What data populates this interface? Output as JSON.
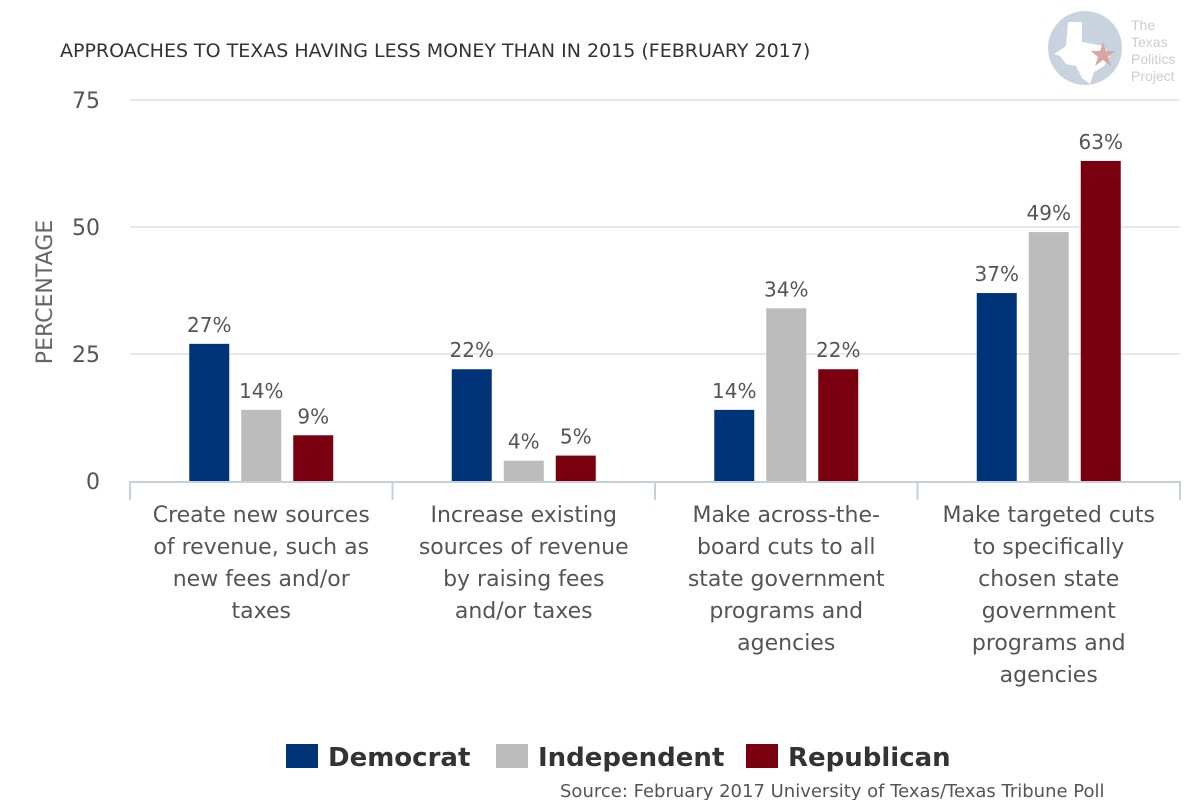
{
  "logo": {
    "icon": "texas-star-logo-icon",
    "lines": [
      "The",
      "Texas",
      "Politics",
      "Project"
    ],
    "colors": {
      "circle": "#c9d3df",
      "star": "#d9a6a6"
    }
  },
  "chart_data": {
    "type": "bar",
    "title": "APPROACHES TO TEXAS HAVING LESS MONEY THAN IN 2015 (FEBRUARY 2017)",
    "xlabel": "",
    "ylabel": "PERCENTAGE",
    "ylim": [
      0,
      75
    ],
    "yticks": [
      0,
      25,
      50,
      75
    ],
    "grid": true,
    "legend_position": "bottom",
    "categories": [
      [
        "Create new sources",
        "of revenue, such as",
        "new fees and/or",
        "taxes"
      ],
      [
        "Increase existing",
        "sources of revenue",
        "by raising fees",
        "and/or taxes"
      ],
      [
        "Make across-the-",
        "board cuts to all",
        "state government",
        "programs and",
        "agencies"
      ],
      [
        "Make targeted cuts",
        "to specifically",
        "chosen state",
        "government",
        "programs and",
        "agencies"
      ]
    ],
    "series": [
      {
        "name": "Democrat",
        "color": "#003478",
        "values": [
          27,
          22,
          14,
          37
        ],
        "labels": [
          "27%",
          "22%",
          "14%",
          "37%"
        ]
      },
      {
        "name": "Independent",
        "color": "#bcbcbc",
        "values": [
          14,
          4,
          34,
          49
        ],
        "labels": [
          "14%",
          "4%",
          "34%",
          "49%"
        ]
      },
      {
        "name": "Republican",
        "color": "#7a0010",
        "values": [
          9,
          5,
          22,
          63
        ],
        "labels": [
          "9%",
          "5%",
          "22%",
          "63%"
        ]
      }
    ],
    "source": "Source: February 2017 University of Texas/Texas Tribune Poll"
  }
}
